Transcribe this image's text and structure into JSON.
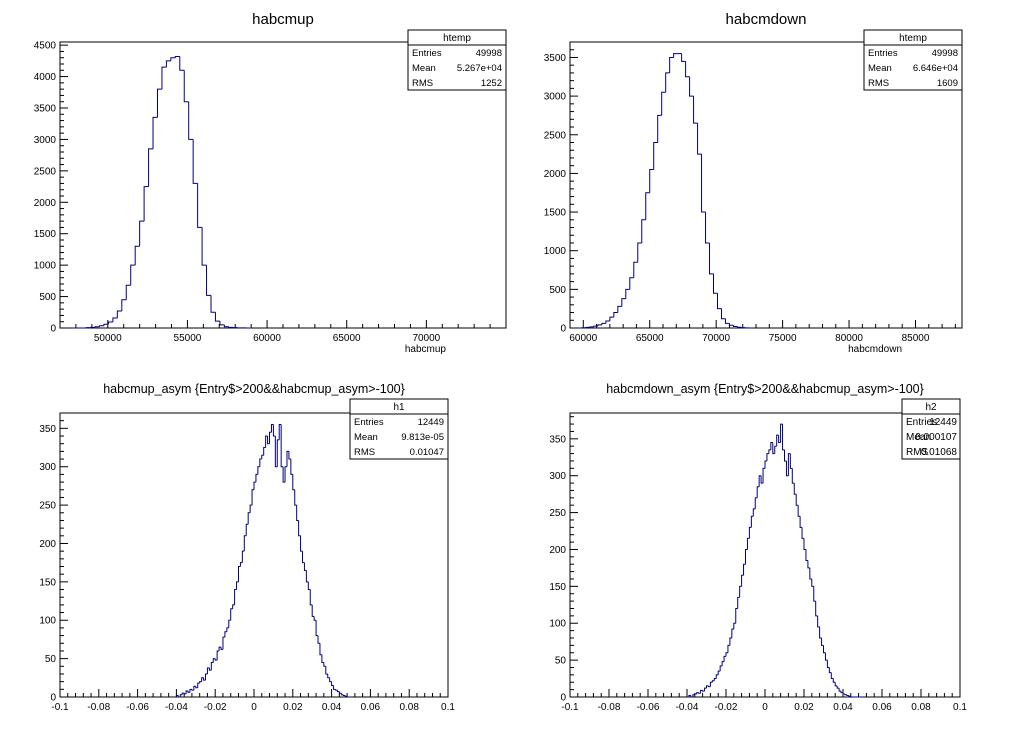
{
  "chart_data": [
    {
      "type": "histogram",
      "title": "habcmup",
      "xlabel": "habcmup",
      "ylabel": "",
      "xlim": [
        47000,
        75000
      ],
      "ylim": [
        0,
        4550
      ],
      "xticks": [
        50000,
        55000,
        60000,
        65000,
        70000
      ],
      "yticks": [
        0,
        500,
        1000,
        1500,
        2000,
        2500,
        3000,
        3500,
        4000,
        4500
      ],
      "stats": {
        "name": "htemp",
        "entries": "49998",
        "mean": "5.267e+04",
        "rms": "1252"
      },
      "series": [
        {
          "color": "#000080",
          "bin_edges_start": 47800,
          "bin_width": 280,
          "values": [
            0,
            0,
            0,
            5,
            10,
            20,
            35,
            60,
            95,
            160,
            270,
            450,
            680,
            1000,
            1300,
            1700,
            2250,
            2850,
            3350,
            3800,
            4150,
            4250,
            4300,
            4320,
            4100,
            3600,
            3000,
            2300,
            1600,
            1000,
            520,
            250,
            110,
            50,
            20,
            10,
            5,
            2,
            1,
            0
          ]
        }
      ]
    },
    {
      "type": "histogram",
      "title": "habcmdown",
      "xlabel": "habcmdown",
      "ylabel": "",
      "xlim": [
        59000,
        88500
      ],
      "ylim": [
        0,
        3700
      ],
      "xticks": [
        60000,
        65000,
        70000,
        75000,
        80000,
        85000
      ],
      "yticks": [
        0,
        500,
        1000,
        1500,
        2000,
        2500,
        3000,
        3500
      ],
      "stats": {
        "name": "htemp",
        "entries": "49998",
        "mean": "6.646e+04",
        "rms": "1609"
      },
      "series": [
        {
          "color": "#000080",
          "bin_edges_start": 59600,
          "bin_width": 300,
          "values": [
            0,
            3,
            8,
            15,
            25,
            40,
            60,
            90,
            140,
            200,
            280,
            380,
            500,
            650,
            850,
            1100,
            1400,
            1750,
            2050,
            2400,
            2750,
            3050,
            3300,
            3500,
            3550,
            3550,
            3450,
            3250,
            3000,
            2650,
            2250,
            1500,
            1100,
            700,
            450,
            250,
            120,
            60,
            35,
            20,
            10,
            5,
            2,
            0
          ]
        }
      ]
    },
    {
      "type": "histogram",
      "title": "habcmup_asym {Entry$>200&&habcmup_asym>-100}",
      "xlabel": "",
      "ylabel": "",
      "xlim": [
        -0.1,
        0.1
      ],
      "ylim": [
        0,
        370
      ],
      "xticks": [
        -0.1,
        -0.08,
        -0.06,
        -0.04,
        -0.02,
        0,
        0.02,
        0.04,
        0.06,
        0.08,
        0.1
      ],
      "xtick_labels": [
        "-0.1",
        "-0.08",
        "-0.06",
        "-0.04",
        "-0.02",
        "0",
        "0.02",
        "0.04",
        "0.06",
        "0.08",
        "0.1"
      ],
      "yticks": [
        0,
        50,
        100,
        150,
        200,
        250,
        300,
        350
      ],
      "stats": {
        "name": "h1",
        "entries": "12449",
        "mean": "9.813e-05",
        "rms": "0.01047"
      },
      "series": [
        {
          "color": "#000080",
          "bin_edges_start": -0.04,
          "bin_width": 0.001,
          "values": [
            2,
            0,
            3,
            5,
            4,
            8,
            6,
            10,
            9,
            14,
            12,
            18,
            20,
            25,
            22,
            30,
            38,
            35,
            45,
            50,
            48,
            60,
            65,
            62,
            78,
            85,
            90,
            100,
            115,
            120,
            140,
            150,
            170,
            175,
            190,
            210,
            225,
            240,
            250,
            270,
            280,
            290,
            300,
            310,
            315,
            325,
            340,
            330,
            345,
            355,
            340,
            300,
            335,
            355,
            300,
            280,
            300,
            320,
            310,
            290,
            270,
            250,
            230,
            210,
            190,
            175,
            165,
            150,
            140,
            120,
            105,
            100,
            80,
            70,
            55,
            45,
            40,
            30,
            25,
            20,
            15,
            10,
            9,
            7,
            5,
            3,
            2,
            1,
            0,
            0
          ]
        }
      ]
    },
    {
      "type": "histogram",
      "title": "habcmdown_asym {Entry$>200&&habcmup_asym>-100}",
      "xlabel": "",
      "ylabel": "",
      "xlim": [
        -0.1,
        0.1
      ],
      "ylim": [
        0,
        385
      ],
      "xticks": [
        -0.1,
        -0.08,
        -0.06,
        -0.04,
        -0.02,
        0,
        0.02,
        0.04,
        0.06,
        0.08,
        0.1
      ],
      "xtick_labels": [
        "-0.1",
        "-0.08",
        "-0.06",
        "-0.04",
        "-0.02",
        "0",
        "0.02",
        "0.04",
        "0.06",
        "0.08",
        "0.1"
      ],
      "yticks": [
        0,
        50,
        100,
        150,
        200,
        250,
        300,
        350
      ],
      "stats": {
        "name": "h2",
        "entries": "12449",
        "mean": "0.000107",
        "rms": "0.01068"
      },
      "series": [
        {
          "color": "#000080",
          "bin_edges_start": -0.04,
          "bin_width": 0.001,
          "values": [
            0,
            2,
            0,
            3,
            4,
            6,
            5,
            9,
            8,
            12,
            15,
            14,
            20,
            22,
            25,
            30,
            35,
            42,
            48,
            55,
            60,
            70,
            80,
            92,
            100,
            120,
            135,
            150,
            165,
            180,
            200,
            215,
            230,
            245,
            255,
            270,
            285,
            300,
            290,
            310,
            320,
            330,
            335,
            345,
            330,
            340,
            355,
            345,
            370,
            335,
            320,
            300,
            330,
            310,
            290,
            275,
            260,
            245,
            230,
            215,
            200,
            185,
            175,
            160,
            150,
            130,
            110,
            95,
            80,
            70,
            60,
            50,
            40,
            33,
            25,
            20,
            15,
            12,
            8,
            6,
            4,
            3,
            2,
            1,
            0,
            0,
            0,
            0,
            0,
            0
          ]
        }
      ]
    }
  ]
}
